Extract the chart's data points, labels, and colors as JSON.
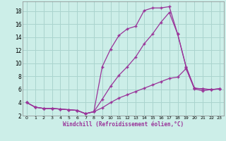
{
  "background_color": "#cceee8",
  "grid_color": "#aad4ce",
  "line_color": "#993399",
  "marker": "+",
  "xlabel": "Windchill (Refroidissement éolien,°C)",
  "xlim": [
    -0.5,
    23.5
  ],
  "ylim": [
    2,
    19.5
  ],
  "xticks": [
    0,
    1,
    2,
    3,
    4,
    5,
    6,
    7,
    8,
    9,
    10,
    11,
    12,
    13,
    14,
    15,
    16,
    17,
    18,
    19,
    20,
    21,
    22,
    23
  ],
  "yticks": [
    2,
    4,
    6,
    8,
    10,
    12,
    14,
    16,
    18
  ],
  "curve1_x": [
    0,
    1,
    2,
    3,
    4,
    5,
    6,
    7,
    8,
    9,
    10,
    11,
    12,
    13,
    14,
    15,
    16,
    17,
    18,
    19,
    20,
    21,
    22,
    23
  ],
  "curve1_y": [
    4.0,
    3.3,
    3.1,
    3.1,
    3.0,
    2.9,
    2.8,
    2.3,
    2.6,
    9.5,
    12.2,
    14.3,
    15.3,
    15.7,
    18.1,
    18.5,
    18.5,
    18.7,
    14.5,
    9.5,
    6.2,
    6.1,
    6.0,
    6.1
  ],
  "curve2_x": [
    0,
    1,
    2,
    3,
    4,
    5,
    6,
    7,
    8,
    9,
    10,
    11,
    12,
    13,
    14,
    15,
    16,
    17,
    18,
    19,
    20,
    21,
    22,
    23
  ],
  "curve2_y": [
    4.0,
    3.3,
    3.1,
    3.1,
    3.0,
    2.9,
    2.8,
    2.3,
    2.6,
    4.5,
    6.5,
    8.2,
    9.5,
    11.0,
    13.0,
    14.5,
    16.3,
    17.8,
    14.5,
    9.5,
    6.2,
    6.1,
    6.0,
    6.1
  ],
  "curve3_x": [
    0,
    1,
    2,
    3,
    4,
    5,
    6,
    7,
    8,
    9,
    10,
    11,
    12,
    13,
    14,
    15,
    16,
    17,
    18,
    19,
    20,
    21,
    22,
    23
  ],
  "curve3_y": [
    4.0,
    3.3,
    3.1,
    3.1,
    3.0,
    2.9,
    2.8,
    2.3,
    2.6,
    3.2,
    4.0,
    4.7,
    5.2,
    5.7,
    6.2,
    6.7,
    7.2,
    7.7,
    7.9,
    9.2,
    6.1,
    5.8,
    6.0,
    6.1
  ]
}
